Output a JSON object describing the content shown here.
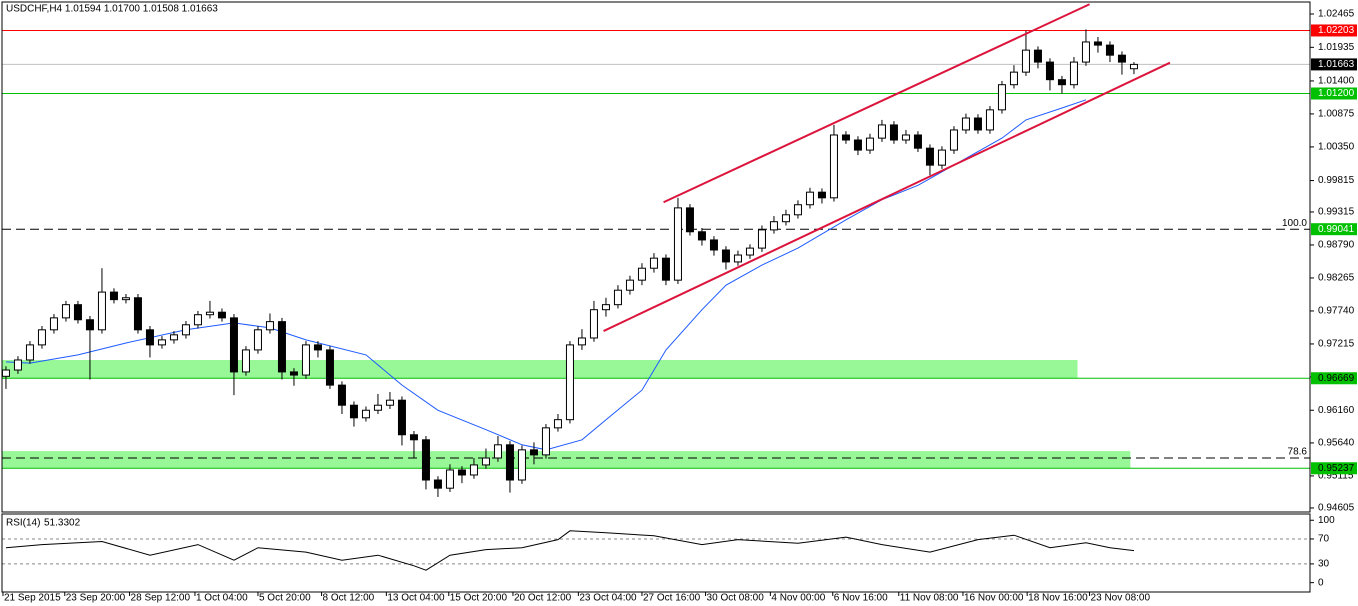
{
  "chart_data": {
    "type": "candlestick",
    "title": "USDCHF,H4  1.01594 1.01700 1.01508 1.01663",
    "xlim": [
      -0.33,
      108.67
    ],
    "ylim": [
      0.94541,
      1.02656
    ],
    "yticks": [
      {
        "value": 1.02465,
        "label": "1.02465"
      },
      {
        "value": 1.01935,
        "label": "1.01935"
      },
      {
        "value": 1.014,
        "label": "1.01400"
      },
      {
        "value": 1.00875,
        "label": "1.00875"
      },
      {
        "value": 1.0035,
        "label": "1.00350"
      },
      {
        "value": 0.99815,
        "label": "0.99815"
      },
      {
        "value": 0.99315,
        "label": "0.99315"
      },
      {
        "value": 0.9879,
        "label": "0.98790"
      },
      {
        "value": 0.98265,
        "label": "0.98265"
      },
      {
        "value": 0.9774,
        "label": "0.97740"
      },
      {
        "value": 0.97215,
        "label": "0.97215"
      },
      {
        "value": 0.9669,
        "label": "0.96690"
      },
      {
        "value": 0.9616,
        "label": "0.96160"
      },
      {
        "value": 0.9564,
        "label": "0.95640"
      },
      {
        "value": 0.95115,
        "label": "0.95115"
      },
      {
        "value": 0.94605,
        "label": "0.94605"
      }
    ],
    "xticks": [
      {
        "value": -0.25,
        "label": "21 Sep 2015"
      },
      {
        "value": 4.9,
        "label": "23 Sep 20:00"
      },
      {
        "value": 10.3,
        "label": "28 Sep 12:00"
      },
      {
        "value": 15.75,
        "label": "1 Oct 04:00"
      },
      {
        "value": 21,
        "label": "5 Oct 20:00"
      },
      {
        "value": 26.3,
        "label": "8 Oct 12:00"
      },
      {
        "value": 31.7,
        "label": "13 Oct 04:00"
      },
      {
        "value": 36.9,
        "label": "15 Oct 20:00"
      },
      {
        "value": 42.25,
        "label": "20 Oct 12:00"
      },
      {
        "value": 47.7,
        "label": "23 Oct 04:00"
      },
      {
        "value": 53,
        "label": "27 Oct 16:00"
      },
      {
        "value": 58.3,
        "label": "30 Oct 08:00"
      },
      {
        "value": 63.7,
        "label": "4 Nov 00:00"
      },
      {
        "value": 68.9,
        "label": "6 Nov 16:00"
      },
      {
        "value": 74.4,
        "label": "11 Nov 08:00"
      },
      {
        "value": 79.75,
        "label": "16 Nov 00:00"
      },
      {
        "value": 85.1,
        "label": "18 Nov 16:00"
      },
      {
        "value": 90.3,
        "label": "23 Nov 08:00"
      }
    ],
    "colors": {
      "up": "#ffffff",
      "down": "#000000",
      "outline": "#000000"
    },
    "candles": [
      [
        0.967,
        0.9686,
        0.965,
        0.968
      ],
      [
        0.968,
        0.9702,
        0.9674,
        0.9696
      ],
      [
        0.9696,
        0.9726,
        0.969,
        0.972
      ],
      [
        0.972,
        0.975,
        0.9714,
        0.9744
      ],
      [
        0.9744,
        0.9769,
        0.9738,
        0.9763
      ],
      [
        0.9763,
        0.979,
        0.9757,
        0.9784
      ],
      [
        0.9784,
        0.979,
        0.9754,
        0.976
      ],
      [
        0.976,
        0.9766,
        0.9665,
        0.9744
      ],
      [
        0.9744,
        0.9842,
        0.9738,
        0.9804
      ],
      [
        0.9804,
        0.981,
        0.9786,
        0.9792
      ],
      [
        0.9792,
        0.9801,
        0.9786,
        0.9795
      ],
      [
        0.9795,
        0.9801,
        0.9738,
        0.9744
      ],
      [
        0.9744,
        0.975,
        0.97,
        0.972
      ],
      [
        0.972,
        0.9734,
        0.9714,
        0.9728
      ],
      [
        0.9728,
        0.9742,
        0.9722,
        0.9736
      ],
      [
        0.9736,
        0.9758,
        0.973,
        0.9752
      ],
      [
        0.9752,
        0.9774,
        0.9746,
        0.9768
      ],
      [
        0.9768,
        0.979,
        0.9762,
        0.9772
      ],
      [
        0.9772,
        0.9778,
        0.9757,
        0.9763
      ],
      [
        0.9763,
        0.9769,
        0.964,
        0.9677
      ],
      [
        0.9677,
        0.9718,
        0.9671,
        0.9712
      ],
      [
        0.9712,
        0.975,
        0.9706,
        0.9744
      ],
      [
        0.9744,
        0.977,
        0.9738,
        0.9757
      ],
      [
        0.9757,
        0.9763,
        0.9665,
        0.9677
      ],
      [
        0.9677,
        0.9683,
        0.9655,
        0.9672
      ],
      [
        0.9672,
        0.9726,
        0.9666,
        0.972
      ],
      [
        0.972,
        0.9726,
        0.97,
        0.9712
      ],
      [
        0.9712,
        0.9718,
        0.965,
        0.9656
      ],
      [
        0.9656,
        0.9662,
        0.961,
        0.9624
      ],
      [
        0.9624,
        0.963,
        0.959,
        0.9604
      ],
      [
        0.9604,
        0.9622,
        0.9598,
        0.9616
      ],
      [
        0.9616,
        0.9642,
        0.961,
        0.9624
      ],
      [
        0.9624,
        0.9645,
        0.9618,
        0.9632
      ],
      [
        0.9632,
        0.9638,
        0.956,
        0.9577
      ],
      [
        0.9577,
        0.9583,
        0.954,
        0.9569
      ],
      [
        0.9569,
        0.9575,
        0.949,
        0.9505
      ],
      [
        0.9505,
        0.9511,
        0.9478,
        0.9492
      ],
      [
        0.9492,
        0.953,
        0.9486,
        0.9521
      ],
      [
        0.9521,
        0.9527,
        0.95,
        0.9513
      ],
      [
        0.9513,
        0.954,
        0.9507,
        0.9529
      ],
      [
        0.9529,
        0.9555,
        0.9523,
        0.954
      ],
      [
        0.954,
        0.9575,
        0.9534,
        0.9561
      ],
      [
        0.9561,
        0.9567,
        0.9485,
        0.9505
      ],
      [
        0.9505,
        0.956,
        0.9499,
        0.9553
      ],
      [
        0.9553,
        0.9565,
        0.953,
        0.9545
      ],
      [
        0.9545,
        0.9594,
        0.9539,
        0.9588
      ],
      [
        0.9588,
        0.961,
        0.9582,
        0.9601
      ],
      [
        0.9601,
        0.9726,
        0.9595,
        0.972
      ],
      [
        0.972,
        0.9745,
        0.9712,
        0.9731
      ],
      [
        0.9731,
        0.979,
        0.9725,
        0.9776
      ],
      [
        0.9776,
        0.9795,
        0.9765,
        0.9784
      ],
      [
        0.9784,
        0.9815,
        0.9778,
        0.9807
      ],
      [
        0.9807,
        0.983,
        0.98,
        0.9823
      ],
      [
        0.9823,
        0.985,
        0.9815,
        0.9842
      ],
      [
        0.9842,
        0.9866,
        0.9835,
        0.9858
      ],
      [
        0.9858,
        0.9864,
        0.9815,
        0.9823
      ],
      [
        0.9823,
        0.9954,
        0.9817,
        0.9938
      ],
      [
        0.9938,
        0.9944,
        0.9894,
        0.99
      ],
      [
        0.99,
        0.9906,
        0.9878,
        0.9887
      ],
      [
        0.9887,
        0.9893,
        0.9862,
        0.9871
      ],
      [
        0.9871,
        0.9877,
        0.984,
        0.9852
      ],
      [
        0.9852,
        0.987,
        0.9846,
        0.9863
      ],
      [
        0.9863,
        0.988,
        0.9857,
        0.9874
      ],
      [
        0.9874,
        0.991,
        0.9868,
        0.9903
      ],
      [
        0.9903,
        0.9925,
        0.9897,
        0.9916
      ],
      [
        0.9916,
        0.9935,
        0.991,
        0.9927
      ],
      [
        0.9927,
        0.995,
        0.9921,
        0.9943
      ],
      [
        0.9943,
        0.997,
        0.9937,
        0.9963
      ],
      [
        0.9963,
        0.9969,
        0.9945,
        0.9954
      ],
      [
        0.9954,
        1.007,
        0.9948,
        1.0054
      ],
      [
        1.0054,
        1.006,
        1.004,
        1.0046
      ],
      [
        1.0046,
        1.0052,
        1.0022,
        1.003
      ],
      [
        1.003,
        1.0056,
        1.0024,
        1.0049
      ],
      [
        1.0049,
        1.0078,
        1.0043,
        1.007
      ],
      [
        1.007,
        1.0076,
        1.004,
        1.0046
      ],
      [
        1.0046,
        1.0062,
        1.004,
        1.0054
      ],
      [
        1.0054,
        1.006,
        1.0027,
        1.0033
      ],
      [
        1.0033,
        1.0039,
        0.999,
        1.0006
      ],
      [
        1.0006,
        1.0036,
        1.0,
        1.003
      ],
      [
        1.003,
        1.0068,
        1.0024,
        1.0062
      ],
      [
        1.0062,
        1.0088,
        1.0056,
        1.0081
      ],
      [
        1.0081,
        1.0087,
        1.0056,
        1.0062
      ],
      [
        1.0062,
        1.01,
        1.0056,
        1.0094
      ],
      [
        1.0094,
        1.014,
        1.0088,
        1.0134
      ],
      [
        1.0134,
        1.0165,
        1.0128,
        1.0154
      ],
      [
        1.0154,
        1.022,
        1.0148,
        1.0189
      ],
      [
        1.0189,
        1.0195,
        1.016,
        1.017
      ],
      [
        1.017,
        1.0176,
        1.0125,
        1.0142
      ],
      [
        1.0142,
        1.0148,
        1.012,
        1.0134
      ],
      [
        1.0134,
        1.0178,
        1.0128,
        1.017
      ],
      [
        1.017,
        1.0222,
        1.0164,
        1.0202
      ],
      [
        1.0202,
        1.021,
        1.0185,
        1.0197
      ],
      [
        1.0197,
        1.0203,
        1.017,
        1.0181
      ],
      [
        1.0181,
        1.0187,
        1.015,
        1.017
      ],
      [
        1.01594,
        1.017,
        1.01508,
        1.01663
      ]
    ],
    "ma": {
      "color": "#1e5aff",
      "x": [
        0,
        2,
        6,
        10,
        15,
        19,
        22,
        25,
        30,
        33,
        36,
        40,
        43,
        45,
        48,
        50,
        53,
        55,
        58,
        60,
        63,
        66,
        70,
        73,
        76,
        79,
        83,
        85,
        88,
        90
      ],
      "values": [
        0.9693,
        0.9691,
        0.9704,
        0.9723,
        0.9744,
        0.9755,
        0.9747,
        0.9728,
        0.9704,
        0.9656,
        0.9616,
        0.9585,
        0.9561,
        0.9553,
        0.9569,
        0.9601,
        0.9648,
        0.9712,
        0.9776,
        0.9815,
        0.9847,
        0.9874,
        0.9919,
        0.9951,
        0.9974,
        1.0006,
        1.0049,
        1.0078,
        1.0097,
        1.011
      ]
    },
    "channels": [
      {
        "color": "#dc143c",
        "x": [
          54.8,
          90.3
        ],
        "values": [
          0.9947,
          1.0262
        ]
      },
      {
        "color": "#dc143c",
        "x": [
          49.8,
          97
        ],
        "values": [
          0.9742,
          1.0169
        ]
      }
    ],
    "zones": [
      {
        "from": 0.96669,
        "to": 0.9696,
        "x_end": 89.3,
        "color": "#98f898"
      },
      {
        "from": 0.95237,
        "to": 0.9551,
        "x_end": 93.7,
        "color": "#98f898"
      }
    ],
    "levels": [
      {
        "value": 1.02203,
        "label": "1.02203",
        "line": "#ff0000",
        "box": "#ff0000",
        "text": "#ffffff"
      },
      {
        "value": 1.01663,
        "label": "1.01663",
        "line": "#c0c0c0",
        "box": "#000000",
        "text": "#ffffff"
      },
      {
        "value": 1.012,
        "label": "1.01200",
        "line": "#00c000",
        "box": "#00c000",
        "text": "#ffffff"
      },
      {
        "value": 0.99041,
        "label": "0.99041",
        "line": "#000000",
        "dash": true,
        "box": "#00c000",
        "text": "#ffffff",
        "tag": "100.0"
      },
      {
        "value": 0.96669,
        "label": "0.96669",
        "line": "#00c000",
        "box": "#00c000",
        "text": "#000000"
      },
      {
        "value": 0.954,
        "line": "#000000",
        "dash": true,
        "tag": "78.6"
      },
      {
        "value": 0.95237,
        "label": "0.95237",
        "line": "#00c000",
        "box": "#00c000",
        "text": "#000000"
      }
    ],
    "rsi": {
      "name": "RSI(14)",
      "color": "#000000",
      "ylim": [
        -15,
        110
      ],
      "yticks": [
        100,
        70,
        30,
        0
      ],
      "levels": [
        70,
        30
      ],
      "x": [
        0,
        3,
        8,
        12,
        16,
        19,
        21,
        25,
        28,
        31,
        34,
        35,
        37,
        40,
        43,
        46,
        47,
        50,
        54,
        58,
        61,
        66,
        70,
        73,
        77,
        81,
        84,
        87,
        90,
        92,
        94
      ],
      "values": [
        56,
        61,
        66,
        44,
        61,
        36,
        56,
        49,
        36,
        44,
        27,
        20,
        44,
        53,
        56,
        69,
        83,
        80,
        75,
        61,
        69,
        63,
        73,
        61,
        49,
        69,
        76,
        56,
        64,
        56,
        51.3302
      ]
    }
  }
}
